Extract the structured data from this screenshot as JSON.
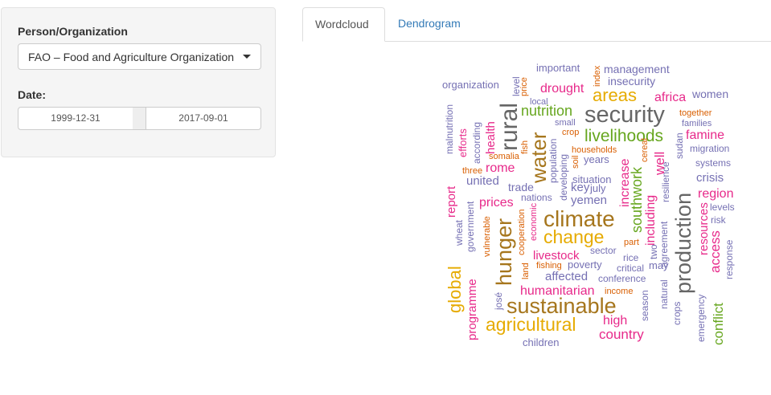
{
  "sidebar": {
    "person_label": "Person/Organization",
    "person_value": "FAO – Food and Agriculture Organization",
    "date_label": "Date:",
    "date_start": "1999-12-31",
    "date_end": "2017-09-01"
  },
  "tabs": [
    {
      "label": "Wordcloud",
      "active": true
    },
    {
      "label": "Dendrogram",
      "active": false
    }
  ],
  "colors": {
    "purple": "#7570b3",
    "pink": "#e7298a",
    "green": "#66a61e",
    "gold": "#e6ab02",
    "brown": "#a6761d",
    "gray": "#666666",
    "orange": "#d95f02",
    "link": "#337ab7"
  },
  "wordcloud": [
    {
      "t": "organization",
      "c": "purple"
    },
    {
      "t": "important",
      "c": "purple"
    },
    {
      "t": "management",
      "c": "purple"
    },
    {
      "t": "insecurity",
      "c": "purple"
    },
    {
      "t": "drought",
      "c": "pink"
    },
    {
      "t": "areas",
      "c": "gold"
    },
    {
      "t": "security",
      "c": "gray"
    },
    {
      "t": "nutrition",
      "c": "green"
    },
    {
      "t": "africa",
      "c": "pink"
    },
    {
      "t": "women",
      "c": "purple"
    },
    {
      "t": "livelihoods",
      "c": "green"
    },
    {
      "t": "famine",
      "c": "pink"
    },
    {
      "t": "rural",
      "c": "gray"
    },
    {
      "t": "water",
      "c": "brown"
    },
    {
      "t": "health",
      "c": "pink"
    },
    {
      "t": "rome",
      "c": "pink"
    },
    {
      "t": "united",
      "c": "purple"
    },
    {
      "t": "trade",
      "c": "purple"
    },
    {
      "t": "prices",
      "c": "pink"
    },
    {
      "t": "climate",
      "c": "brown"
    },
    {
      "t": "change",
      "c": "gold"
    },
    {
      "t": "hunger",
      "c": "brown"
    },
    {
      "t": "global",
      "c": "gold"
    },
    {
      "t": "livestock",
      "c": "pink"
    },
    {
      "t": "affected",
      "c": "purple"
    },
    {
      "t": "humanitarian",
      "c": "pink"
    },
    {
      "t": "sustainable",
      "c": "brown"
    },
    {
      "t": "agricultural",
      "c": "gold"
    },
    {
      "t": "high",
      "c": "pink"
    },
    {
      "t": "country",
      "c": "pink"
    },
    {
      "t": "children",
      "c": "purple"
    },
    {
      "t": "production",
      "c": "gray"
    },
    {
      "t": "region",
      "c": "pink"
    },
    {
      "t": "crisis",
      "c": "purple"
    },
    {
      "t": "access",
      "c": "pink"
    },
    {
      "t": "resources",
      "c": "pink"
    },
    {
      "t": "conflict",
      "c": "green"
    },
    {
      "t": "southwork",
      "c": "green"
    },
    {
      "t": "increase",
      "c": "pink"
    },
    {
      "t": "including",
      "c": "pink"
    },
    {
      "t": "well",
      "c": "pink"
    },
    {
      "t": "yemen",
      "c": "purple"
    },
    {
      "t": "key",
      "c": "purple"
    },
    {
      "t": "july",
      "c": "purple"
    },
    {
      "t": "situation",
      "c": "purple"
    },
    {
      "t": "years",
      "c": "purple"
    },
    {
      "t": "households",
      "c": "orange"
    },
    {
      "t": "crop",
      "c": "orange"
    },
    {
      "t": "small",
      "c": "purple"
    },
    {
      "t": "local",
      "c": "purple"
    },
    {
      "t": "price",
      "c": "orange"
    },
    {
      "t": "level",
      "c": "purple"
    },
    {
      "t": "index",
      "c": "orange"
    },
    {
      "t": "together",
      "c": "orange"
    },
    {
      "t": "families",
      "c": "purple"
    },
    {
      "t": "migration",
      "c": "purple"
    },
    {
      "t": "systems",
      "c": "purple"
    },
    {
      "t": "levels",
      "c": "purple"
    },
    {
      "t": "risk",
      "c": "purple"
    },
    {
      "t": "response",
      "c": "purple"
    },
    {
      "t": "emergency",
      "c": "purple"
    },
    {
      "t": "crops",
      "c": "purple"
    },
    {
      "t": "natural",
      "c": "purple"
    },
    {
      "t": "season",
      "c": "purple"
    },
    {
      "t": "agreement",
      "c": "purple"
    },
    {
      "t": "two",
      "c": "purple"
    },
    {
      "t": "may",
      "c": "purple"
    },
    {
      "t": "critical",
      "c": "purple"
    },
    {
      "t": "rice",
      "c": "purple"
    },
    {
      "t": "part",
      "c": "orange"
    },
    {
      "t": "sector",
      "c": "purple"
    },
    {
      "t": "poverty",
      "c": "purple"
    },
    {
      "t": "conference",
      "c": "purple"
    },
    {
      "t": "income",
      "c": "orange"
    },
    {
      "t": "fishing",
      "c": "orange"
    },
    {
      "t": "land",
      "c": "orange"
    },
    {
      "t": "cooperation",
      "c": "orange"
    },
    {
      "t": "economic",
      "c": "pink"
    },
    {
      "t": "nations",
      "c": "purple"
    },
    {
      "t": "developing",
      "c": "purple"
    },
    {
      "t": "population",
      "c": "purple"
    },
    {
      "t": "fish",
      "c": "orange"
    },
    {
      "t": "somalia",
      "c": "orange"
    },
    {
      "t": "three",
      "c": "orange"
    },
    {
      "t": "efforts",
      "c": "pink"
    },
    {
      "t": "according",
      "c": "purple"
    },
    {
      "t": "malnutrition",
      "c": "purple"
    },
    {
      "t": "report",
      "c": "pink"
    },
    {
      "t": "government",
      "c": "purple"
    },
    {
      "t": "wheat",
      "c": "purple"
    },
    {
      "t": "vulnerable",
      "c": "orange"
    },
    {
      "t": "programme",
      "c": "pink"
    },
    {
      "t": "josé",
      "c": "purple"
    },
    {
      "t": "resilience",
      "c": "purple"
    },
    {
      "t": "sudan",
      "c": "purple"
    },
    {
      "t": "cereal",
      "c": "orange"
    },
    {
      "t": "soil",
      "c": "orange"
    }
  ]
}
